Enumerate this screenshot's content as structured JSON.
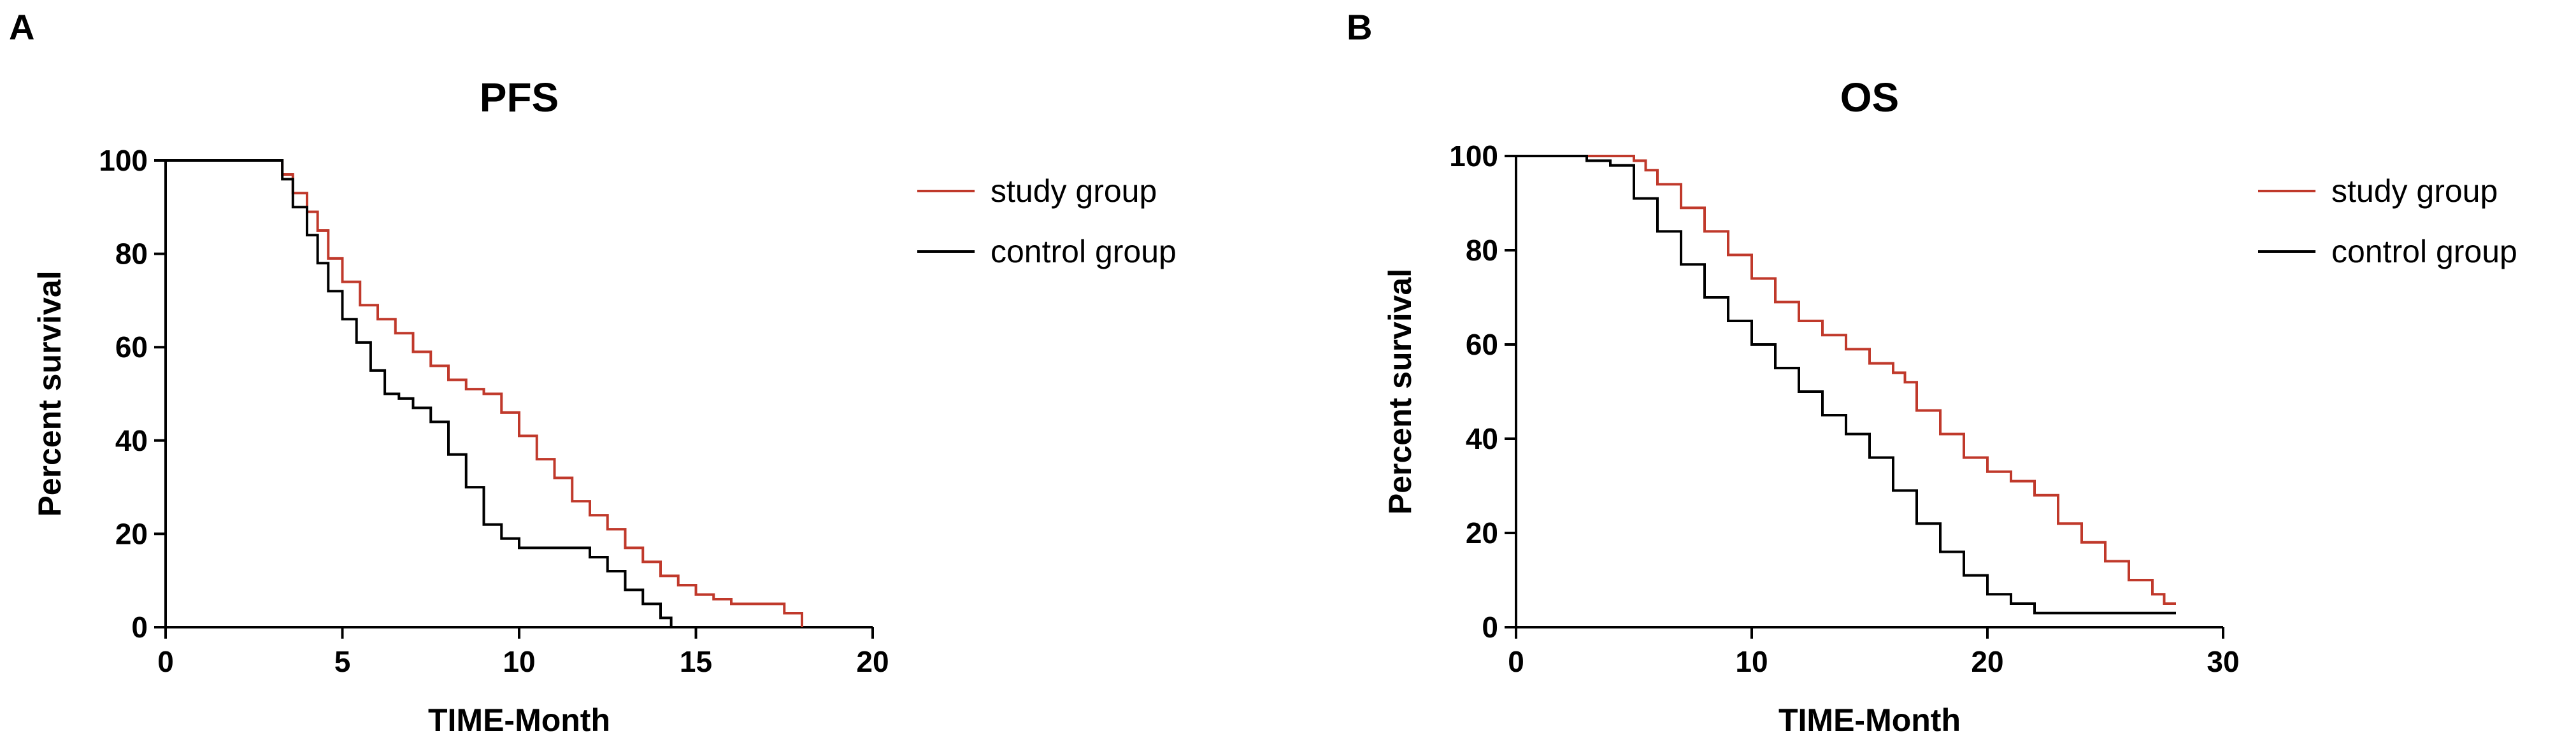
{
  "colors": {
    "study": "#c0392b",
    "control": "#000000",
    "axis": "#000000"
  },
  "chart_data": [
    {
      "type": "line",
      "panel_letter": "A",
      "title": "PFS",
      "xlabel": "TIME-Month",
      "ylabel": "Percent survival",
      "xlim": [
        0,
        20
      ],
      "ylim": [
        0,
        100
      ],
      "xticks": [
        0,
        5,
        10,
        15,
        20
      ],
      "yticks": [
        0,
        20,
        40,
        60,
        80,
        100
      ],
      "legend_position": "top-right",
      "series": [
        {
          "name": "study group",
          "color_key": "study",
          "points": [
            [
              0,
              100
            ],
            [
              3,
              100
            ],
            [
              3.3,
              97
            ],
            [
              3.6,
              93
            ],
            [
              4,
              89
            ],
            [
              4.3,
              85
            ],
            [
              4.6,
              79
            ],
            [
              5,
              74
            ],
            [
              5.5,
              69
            ],
            [
              6,
              66
            ],
            [
              6.5,
              63
            ],
            [
              7,
              59
            ],
            [
              7.5,
              56
            ],
            [
              8,
              53
            ],
            [
              8.5,
              51
            ],
            [
              9,
              50
            ],
            [
              9.5,
              46
            ],
            [
              10,
              41
            ],
            [
              10.5,
              36
            ],
            [
              11,
              32
            ],
            [
              11.5,
              27
            ],
            [
              12,
              24
            ],
            [
              12.5,
              21
            ],
            [
              13,
              17
            ],
            [
              13.5,
              14
            ],
            [
              14,
              11
            ],
            [
              14.5,
              9
            ],
            [
              15,
              7
            ],
            [
              15.5,
              6
            ],
            [
              16,
              5
            ],
            [
              17,
              5
            ],
            [
              17.5,
              3
            ],
            [
              18,
              0
            ]
          ]
        },
        {
          "name": "control group",
          "color_key": "control",
          "points": [
            [
              0,
              100
            ],
            [
              3,
              100
            ],
            [
              3.3,
              96
            ],
            [
              3.6,
              90
            ],
            [
              4,
              84
            ],
            [
              4.3,
              78
            ],
            [
              4.6,
              72
            ],
            [
              5,
              66
            ],
            [
              5.4,
              61
            ],
            [
              5.8,
              55
            ],
            [
              6.2,
              50
            ],
            [
              6.6,
              49
            ],
            [
              7,
              47
            ],
            [
              7.5,
              44
            ],
            [
              8,
              37
            ],
            [
              8.5,
              30
            ],
            [
              9,
              22
            ],
            [
              9.5,
              19
            ],
            [
              10,
              17
            ],
            [
              11,
              17
            ],
            [
              12,
              15
            ],
            [
              12.5,
              12
            ],
            [
              13,
              8
            ],
            [
              13.5,
              5
            ],
            [
              14,
              2
            ],
            [
              14.3,
              0
            ]
          ]
        }
      ]
    },
    {
      "type": "line",
      "panel_letter": "B",
      "title": "OS",
      "xlabel": "TIME-Month",
      "ylabel": "Percent survival",
      "xlim": [
        0,
        30
      ],
      "ylim": [
        0,
        100
      ],
      "xticks": [
        0,
        10,
        20,
        30
      ],
      "yticks": [
        0,
        20,
        40,
        60,
        80,
        100
      ],
      "legend_position": "top-right",
      "series": [
        {
          "name": "study group",
          "color_key": "study",
          "points": [
            [
              0,
              100
            ],
            [
              5,
              99
            ],
            [
              5.5,
              97
            ],
            [
              6,
              94
            ],
            [
              7,
              89
            ],
            [
              8,
              84
            ],
            [
              9,
              79
            ],
            [
              10,
              74
            ],
            [
              11,
              69
            ],
            [
              12,
              65
            ],
            [
              13,
              62
            ],
            [
              14,
              59
            ],
            [
              15,
              56
            ],
            [
              16,
              54
            ],
            [
              16.5,
              52
            ],
            [
              17,
              46
            ],
            [
              18,
              41
            ],
            [
              19,
              36
            ],
            [
              20,
              33
            ],
            [
              21,
              31
            ],
            [
              22,
              28
            ],
            [
              23,
              22
            ],
            [
              24,
              18
            ],
            [
              25,
              14
            ],
            [
              26,
              10
            ],
            [
              27,
              7
            ],
            [
              27.5,
              5
            ],
            [
              28,
              5
            ]
          ]
        },
        {
          "name": "control group",
          "color_key": "control",
          "points": [
            [
              0,
              100
            ],
            [
              3,
              99
            ],
            [
              4,
              98
            ],
            [
              5,
              91
            ],
            [
              6,
              84
            ],
            [
              7,
              77
            ],
            [
              8,
              70
            ],
            [
              9,
              65
            ],
            [
              10,
              60
            ],
            [
              11,
              55
            ],
            [
              12,
              50
            ],
            [
              13,
              45
            ],
            [
              14,
              41
            ],
            [
              15,
              36
            ],
            [
              16,
              29
            ],
            [
              17,
              22
            ],
            [
              18,
              16
            ],
            [
              19,
              11
            ],
            [
              20,
              7
            ],
            [
              21,
              5
            ],
            [
              22,
              3
            ],
            [
              28,
              3
            ]
          ]
        }
      ]
    }
  ]
}
